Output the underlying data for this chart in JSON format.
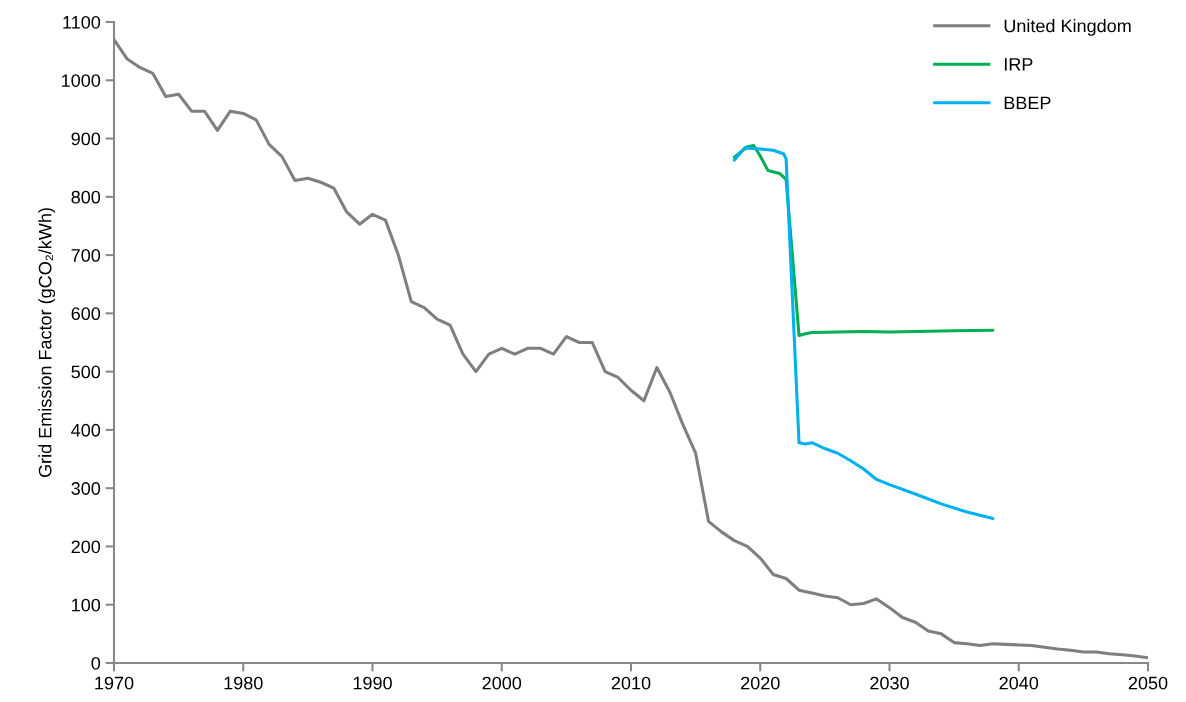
{
  "chart_data": {
    "type": "line",
    "ylabel": "Grid Emission Factor (gCO₂/kWh)",
    "xlim": [
      1970,
      2050
    ],
    "xticks": [
      1970,
      1980,
      1990,
      2000,
      2010,
      2020,
      2030,
      2040,
      2050
    ],
    "ylim": [
      0,
      1100
    ],
    "yticks": [
      0,
      100,
      200,
      300,
      400,
      500,
      600,
      700,
      800,
      900,
      1000,
      1100
    ],
    "grid": false,
    "legend": "top right",
    "line_style": "solid",
    "marker": "none",
    "series": [
      {
        "name": "United Kingdom",
        "color": "#7f7f7f",
        "x": [
          1970,
          1971,
          1972,
          1973,
          1974,
          1975,
          1976,
          1977,
          1978,
          1979,
          1980,
          1981,
          1982,
          1983,
          1984,
          1985,
          1986,
          1987,
          1988,
          1989,
          1990,
          1991,
          1992,
          1993,
          1994,
          1995,
          1996,
          1997,
          1998,
          1999,
          2000,
          2001,
          2002,
          2003,
          2004,
          2005,
          2006,
          2007,
          2008,
          2009,
          2010,
          2011,
          2012,
          2013,
          2014,
          2015,
          2016,
          2017,
          2018,
          2019,
          2020,
          2021,
          2022,
          2023,
          2024,
          2025,
          2026,
          2027,
          2028,
          2029,
          2030,
          2031,
          2032,
          2033,
          2034,
          2035,
          2036,
          2037,
          2038,
          2039,
          2040,
          2041,
          2042,
          2043,
          2044,
          2045,
          2046,
          2047,
          2048,
          2049,
          2050
        ],
        "values": [
          1070,
          1037,
          1022,
          1012,
          972,
          976,
          947,
          947,
          914,
          947,
          943,
          932,
          890,
          869,
          828,
          832,
          825,
          815,
          774,
          753,
          770,
          760,
          700,
          620,
          610,
          590,
          580,
          530,
          500,
          530,
          540,
          530,
          540,
          540,
          530,
          560,
          550,
          550,
          500,
          490,
          468,
          450,
          507,
          465,
          410,
          360,
          243,
          225,
          210,
          200,
          180,
          152,
          145,
          125,
          120,
          115,
          112,
          100,
          102,
          110,
          95,
          78,
          70,
          55,
          50,
          35,
          33,
          30,
          33,
          32,
          31,
          30,
          27,
          24,
          22,
          19,
          19,
          16,
          14,
          12,
          9
        ]
      },
      {
        "name": "IRP",
        "color": "#00b050",
        "x": [
          2018,
          2019,
          2019.5,
          2020,
          2020.6,
          2021.5,
          2022,
          2023,
          2023.5,
          2024,
          2026,
          2028,
          2030,
          2032,
          2035,
          2038
        ],
        "values": [
          868,
          886,
          888,
          870,
          845,
          840,
          830,
          562,
          565,
          567,
          568,
          569,
          568,
          569,
          570,
          571
        ]
      },
      {
        "name": "BBEP",
        "color": "#00b0f0",
        "x": [
          2018,
          2018.8,
          2020,
          2021,
          2021.8,
          2022,
          2023,
          2023.5,
          2024,
          2025,
          2026,
          2027,
          2028,
          2029,
          2030,
          2032,
          2034,
          2036,
          2038
        ],
        "values": [
          863,
          884,
          882,
          880,
          874,
          865,
          378,
          376,
          378,
          368,
          360,
          347,
          333,
          315,
          306,
          290,
          273,
          259,
          248
        ]
      }
    ]
  }
}
